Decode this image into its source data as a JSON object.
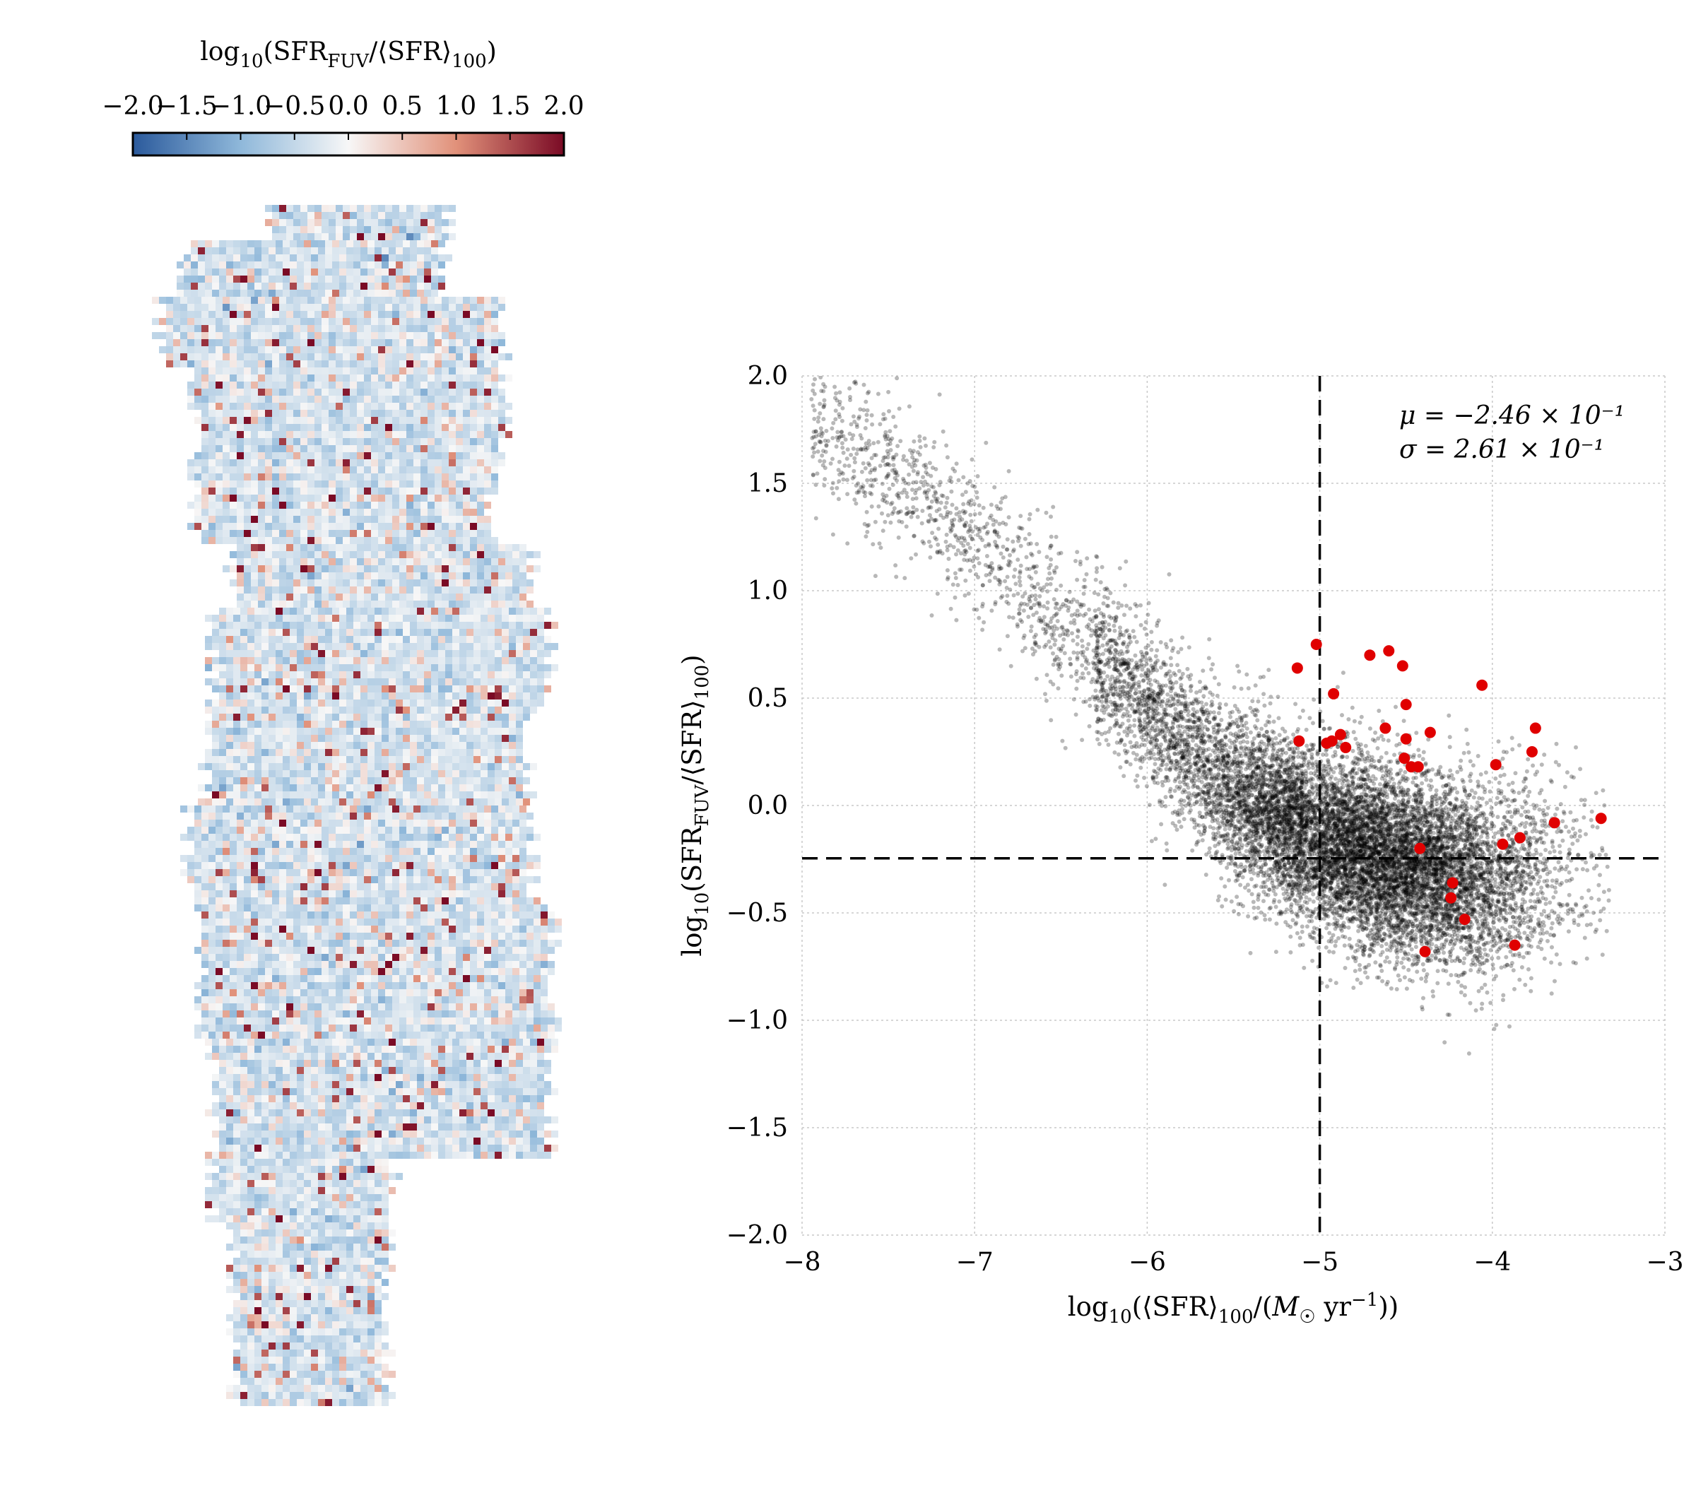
{
  "colorbar": {
    "title": "log₁₀(SFR_FUV/⟨SFR⟩₁₀₀)",
    "range": [
      -2.0,
      2.0
    ],
    "ticks": [
      -2.0,
      -1.5,
      -1.0,
      -0.5,
      0.0,
      0.5,
      1.0,
      1.5,
      2.0
    ],
    "tick_labels": [
      "−2.0",
      "−1.5",
      "−1.0",
      "−0.5",
      "0.0",
      "0.5",
      "1.0",
      "1.5",
      "2.0"
    ],
    "colormap": "RdBu_r",
    "colors": [
      "#2b5a9c",
      "#f7f7f7",
      "#7a0a25"
    ]
  },
  "chart_data": [
    {
      "type": "heatmap",
      "colormap": "RdBu_r",
      "range": [
        -2.0,
        2.0
      ],
      "note_values": "pixel map of log10(SFR_FUV/<SFR>100) over an irregular mosaic footprint; mostly light-blue values near -0.3 with scattered red (up to 2.0) pixels"
    },
    {
      "type": "scatter",
      "xlabel": "log₁₀(⟨SFR⟩₁₀₀/(M☉ yr⁻¹))",
      "ylabel": "log₁₀(SFR_FUV/⟨SFR⟩₁₀₀)",
      "xlim": [
        -8,
        -3
      ],
      "ylim": [
        -2.0,
        2.0
      ],
      "xticks": [
        -8,
        -7,
        -6,
        -5,
        -4,
        -3
      ],
      "xtick_labels": [
        "−8",
        "−7",
        "−6",
        "−5",
        "−4",
        "−3"
      ],
      "yticks": [
        -2.0,
        -1.5,
        -1.0,
        -0.5,
        0.0,
        0.5,
        1.0,
        1.5,
        2.0
      ],
      "ytick_labels": [
        "−2.0",
        "−1.5",
        "−1.0",
        "−0.5",
        "0.0",
        "0.5",
        "1.0",
        "1.5",
        "2.0"
      ],
      "grid": true,
      "vline_x": -5.0,
      "hline_y": -0.246,
      "annotations": [
        "μ = −2.46 × 10⁻¹",
        "σ = 2.61 × 10⁻¹"
      ],
      "series": [
        {
          "color": "#000000",
          "approx_count": 12000,
          "trend": {
            "x": [
              -7.9,
              -7.5,
              -7.0,
              -6.5,
              -6.0,
              -5.5,
              -5.0,
              -4.5,
              -4.0,
              -3.5
            ],
            "y": [
              1.75,
              1.55,
              1.25,
              0.85,
              0.45,
              0.05,
              -0.15,
              -0.28,
              -0.35,
              -0.3
            ]
          }
        },
        {
          "color": "#e00000",
          "points": [
            [
              -5.13,
              0.64
            ],
            [
              -5.02,
              0.75
            ],
            [
              -4.92,
              0.52
            ],
            [
              -4.71,
              0.7
            ],
            [
              -4.6,
              0.72
            ],
            [
              -4.52,
              0.65
            ],
            [
              -4.06,
              0.56
            ],
            [
              -5.12,
              0.3
            ],
            [
              -4.96,
              0.29
            ],
            [
              -4.93,
              0.3
            ],
            [
              -4.88,
              0.33
            ],
            [
              -4.85,
              0.27
            ],
            [
              -4.5,
              0.47
            ],
            [
              -4.62,
              0.36
            ],
            [
              -4.5,
              0.31
            ],
            [
              -4.36,
              0.34
            ],
            [
              -4.51,
              0.22
            ],
            [
              -4.47,
              0.18
            ],
            [
              -4.43,
              0.18
            ],
            [
              -3.98,
              0.19
            ],
            [
              -3.77,
              0.25
            ],
            [
              -3.75,
              0.36
            ],
            [
              -3.64,
              -0.08
            ],
            [
              -3.37,
              -0.06
            ],
            [
              -3.94,
              -0.18
            ],
            [
              -3.84,
              -0.15
            ],
            [
              -4.42,
              -0.2
            ],
            [
              -4.23,
              -0.36
            ],
            [
              -4.24,
              -0.43
            ],
            [
              -4.16,
              -0.53
            ],
            [
              -4.39,
              -0.68
            ],
            [
              -3.87,
              -0.65
            ]
          ]
        }
      ]
    }
  ]
}
